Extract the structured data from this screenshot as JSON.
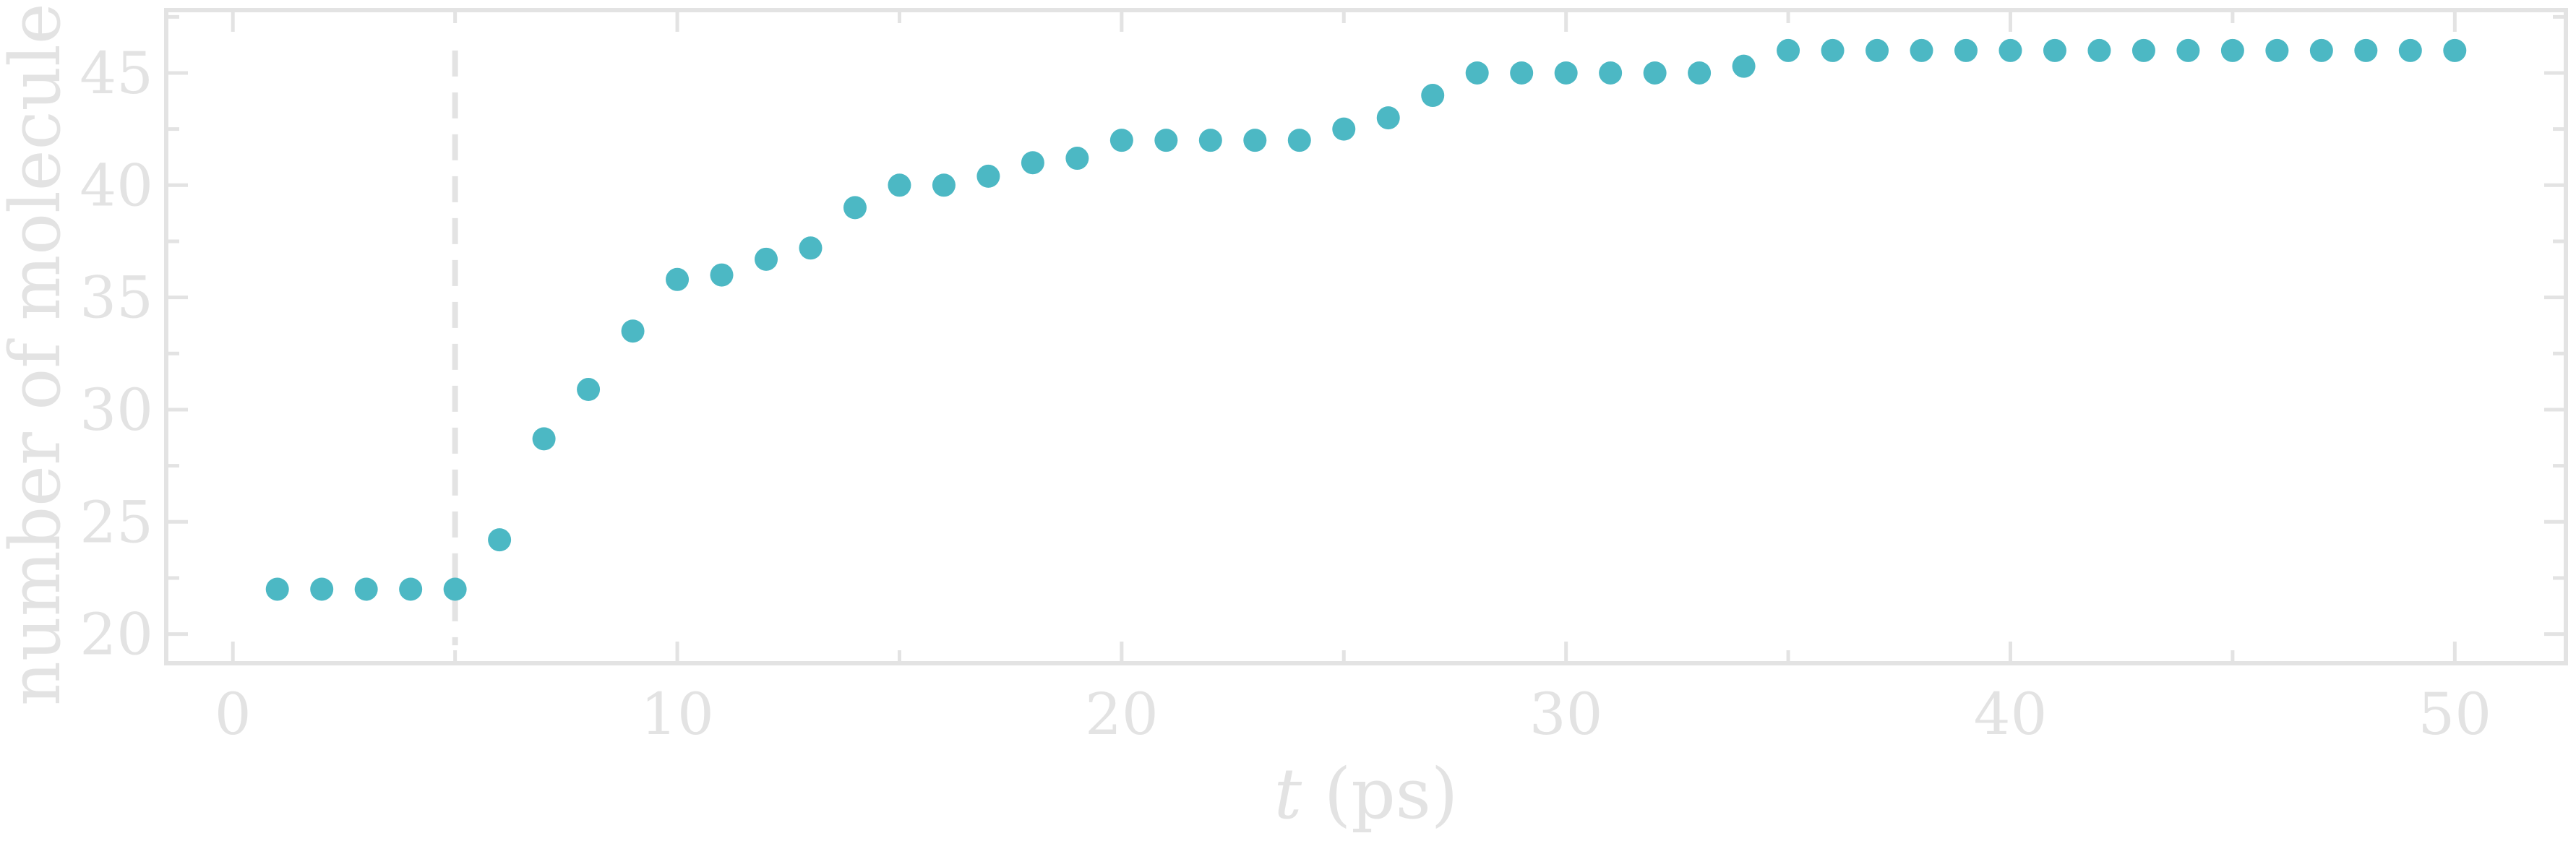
{
  "chart_data": {
    "type": "scatter",
    "title": "",
    "xlabel_italic": "t",
    "xlabel_unit": " (ps)",
    "ylabel": "number of molecules",
    "xlim": [
      -1.5,
      52.5
    ],
    "ylim": [
      18.7,
      47.8
    ],
    "xticks": [
      0,
      10,
      20,
      30,
      40,
      50
    ],
    "yticks": [
      20,
      25,
      30,
      35,
      40,
      45
    ],
    "x_minor_step": 5,
    "y_minor_step": 2.5,
    "vline_x": 5,
    "color": "#4cb8c4",
    "x": [
      1,
      2,
      3,
      4,
      5,
      6,
      7,
      8,
      9,
      10,
      11,
      12,
      13,
      14,
      15,
      16,
      17,
      18,
      19,
      20,
      21,
      22,
      23,
      24,
      25,
      26,
      27,
      28,
      29,
      30,
      31,
      32,
      33,
      34,
      35,
      36,
      37,
      38,
      39,
      40,
      41,
      42,
      43,
      44,
      45,
      46,
      47,
      48,
      49,
      50
    ],
    "y": [
      22,
      22,
      22,
      22,
      22,
      24.2,
      28.7,
      30.9,
      33.5,
      35.8,
      36,
      36.7,
      37.2,
      39,
      40,
      40,
      40.4,
      41,
      41.2,
      42,
      42,
      42,
      42,
      42,
      42.5,
      43,
      44,
      45,
      45,
      45,
      45,
      45,
      45,
      45.3,
      46,
      46,
      46,
      46,
      46,
      46,
      46,
      46,
      46,
      46,
      46,
      46,
      46,
      46,
      46,
      46
    ]
  }
}
